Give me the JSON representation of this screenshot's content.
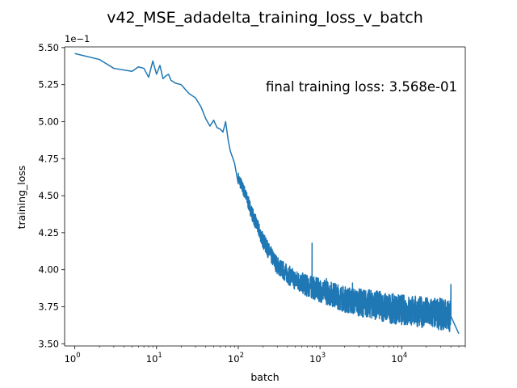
{
  "chart_data": {
    "type": "line",
    "title": "v42_MSE_adadelta_training_loss_v_batch",
    "xlabel": "batch",
    "ylabel": "training_loss",
    "x_scale": "log",
    "xlim": [
      0.75,
      60000
    ],
    "ylim": [
      0.3485,
      0.5505
    ],
    "y_offset_label": "1e−1",
    "x_ticks": [
      {
        "value": 1,
        "base": "10",
        "exp": "0"
      },
      {
        "value": 10,
        "base": "10",
        "exp": "1"
      },
      {
        "value": 100,
        "base": "10",
        "exp": "2"
      },
      {
        "value": 1000,
        "base": "10",
        "exp": "3"
      },
      {
        "value": 10000,
        "base": "10",
        "exp": "4"
      }
    ],
    "y_ticks": [
      {
        "value": 0.35,
        "label": "3.50"
      },
      {
        "value": 0.375,
        "label": "3.75"
      },
      {
        "value": 0.4,
        "label": "4.00"
      },
      {
        "value": 0.425,
        "label": "4.25"
      },
      {
        "value": 0.45,
        "label": "4.50"
      },
      {
        "value": 0.475,
        "label": "4.75"
      },
      {
        "value": 0.5,
        "label": "5.00"
      },
      {
        "value": 0.525,
        "label": "5.25"
      },
      {
        "value": 0.55,
        "label": "5.50"
      }
    ],
    "annotation": "final training loss: 3.568e-01",
    "grid": false,
    "series": [
      {
        "color": "#1f77b4",
        "x": [
          1,
          2,
          3,
          5,
          6,
          7,
          8,
          9,
          10,
          11,
          12,
          13,
          14,
          15,
          17,
          20,
          25,
          30,
          35,
          40,
          45,
          50,
          55,
          60,
          65,
          70,
          75,
          80,
          85,
          90,
          100,
          120,
          150,
          200,
          250,
          300,
          400,
          500,
          600,
          700,
          800,
          900,
          1000,
          1500,
          2000,
          3000,
          5000,
          7000,
          10000,
          15000,
          20000,
          30000,
          40000,
          50000
        ],
        "y": [
          0.546,
          0.542,
          0.536,
          0.534,
          0.537,
          0.536,
          0.53,
          0.541,
          0.532,
          0.538,
          0.529,
          0.531,
          0.532,
          0.528,
          0.526,
          0.525,
          0.519,
          0.516,
          0.51,
          0.502,
          0.497,
          0.501,
          0.496,
          0.495,
          0.493,
          0.5,
          0.488,
          0.48,
          0.476,
          0.472,
          0.462,
          0.452,
          0.437,
          0.42,
          0.41,
          0.403,
          0.397,
          0.393,
          0.391,
          0.389,
          0.388,
          0.387,
          0.386,
          0.383,
          0.38,
          0.378,
          0.376,
          0.374,
          0.373,
          0.372,
          0.371,
          0.37,
          0.369,
          0.3568
        ],
        "noise_band": [
          {
            "x": 100,
            "amp": 0.004
          },
          {
            "x": 300,
            "amp": 0.006
          },
          {
            "x": 1000,
            "amp": 0.008
          },
          {
            "x": 5000,
            "amp": 0.01
          },
          {
            "x": 50000,
            "amp": 0.011
          }
        ],
        "spikes": [
          {
            "x": 800,
            "y": 0.418
          },
          {
            "x": 1200,
            "y": 0.394
          },
          {
            "x": 2500,
            "y": 0.391
          },
          {
            "x": 40000,
            "y": 0.39
          }
        ]
      }
    ]
  }
}
